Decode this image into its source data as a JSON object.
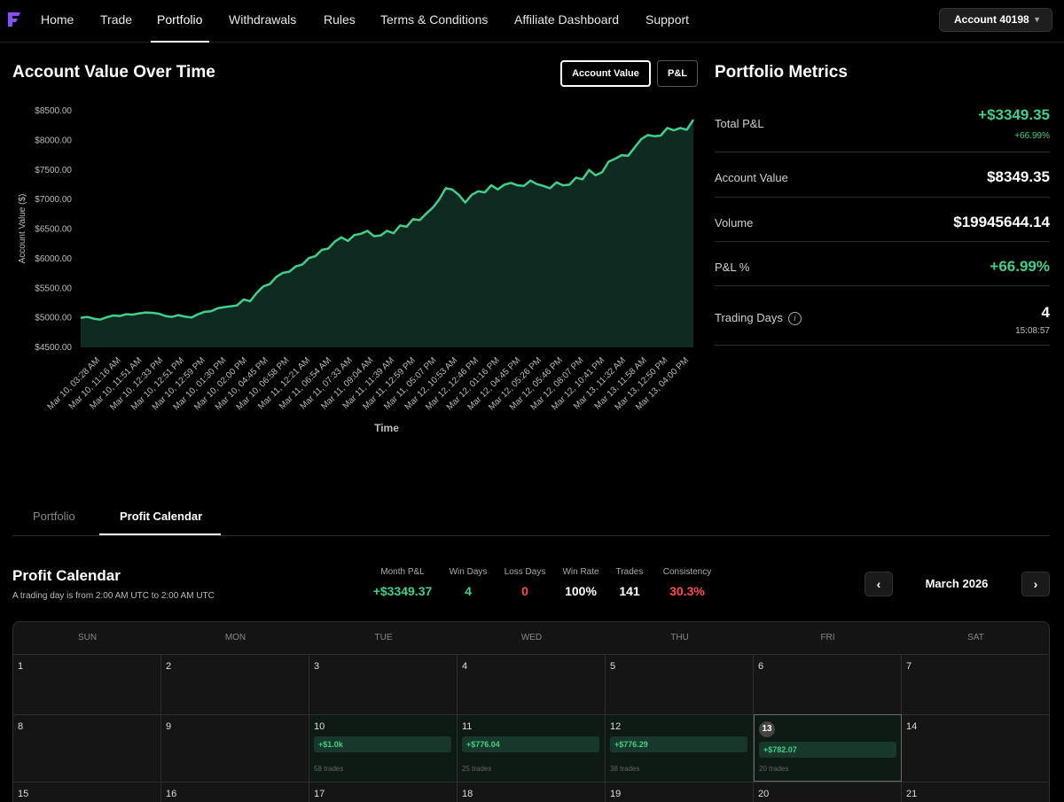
{
  "nav": {
    "items": [
      "Home",
      "Trade",
      "Portfolio",
      "Withdrawals",
      "Rules",
      "Terms & Conditions",
      "Affiliate Dashboard",
      "Support"
    ],
    "active": "Portfolio",
    "account_label": "Account 40198"
  },
  "chart_section": {
    "title": "Account Value Over Time",
    "toggle_account_value": "Account Value",
    "toggle_pnl": "P&L"
  },
  "chart_data": {
    "type": "area",
    "title": "Account Value Over Time",
    "xlabel": "Time",
    "ylabel": "Account Value ($)",
    "ylim": [
      4500,
      8500
    ],
    "y_ticks": [
      "$8500.00",
      "$8000.00",
      "$7500.00",
      "$7000.00",
      "$6500.00",
      "$6000.00",
      "$5500.00",
      "$5000.00",
      "$4500.00"
    ],
    "y_tick_values": [
      8500,
      8000,
      7500,
      7000,
      6500,
      6000,
      5500,
      5000,
      4500
    ],
    "x_ticks": [
      "Mar 10, 03:28 AM",
      "Mar 10, 11:16 AM",
      "Mar 10, 11:51 AM",
      "Mar 10, 12:33 PM",
      "Mar 10, 12:51 PM",
      "Mar 10, 12:59 PM",
      "Mar 10, 01:30 PM",
      "Mar 10, 02:00 PM",
      "Mar 10, 04:45 PM",
      "Mar 10, 06:58 PM",
      "Mar 11, 12:21 AM",
      "Mar 11, 06:54 AM",
      "Mar 11, 07:33 AM",
      "Mar 11, 09:04 AM",
      "Mar 11, 11:39 AM",
      "Mar 11, 12:59 PM",
      "Mar 11, 05:07 PM",
      "Mar 12, 10:53 AM",
      "Mar 12, 12:46 PM",
      "Mar 12, 01:16 PM",
      "Mar 12, 04:45 PM",
      "Mar 12, 05:26 PM",
      "Mar 12, 05:46 PM",
      "Mar 12, 08:07 PM",
      "Mar 12, 10:41 PM",
      "Mar 13, 11:32 AM",
      "Mar 13, 11:58 AM",
      "Mar 13, 12:50 PM",
      "Mar 13, 04:00 PM"
    ],
    "series": [
      {
        "name": "Account Value",
        "values": [
          5000,
          5015,
          4985,
          4970,
          5010,
          5040,
          5030,
          5060,
          5055,
          5075,
          5090,
          5085,
          5070,
          5030,
          5015,
          5045,
          5020,
          5005,
          5060,
          5100,
          5110,
          5160,
          5180,
          5195,
          5210,
          5310,
          5280,
          5420,
          5530,
          5570,
          5690,
          5760,
          5780,
          5870,
          5900,
          6010,
          6040,
          6150,
          6170,
          6290,
          6360,
          6300,
          6400,
          6420,
          6470,
          6380,
          6390,
          6470,
          6430,
          6560,
          6540,
          6670,
          6650,
          6760,
          6860,
          7000,
          7190,
          7170,
          7080,
          6950,
          7080,
          7140,
          7120,
          7240,
          7170,
          7250,
          7280,
          7240,
          7230,
          7320,
          7260,
          7230,
          7190,
          7290,
          7240,
          7250,
          7370,
          7340,
          7500,
          7410,
          7460,
          7640,
          7690,
          7750,
          7740,
          7880,
          8020,
          8090,
          8070,
          8080,
          8210,
          8170,
          8210,
          8180,
          8349.35
        ]
      }
    ]
  },
  "metrics": {
    "title": "Portfolio Metrics",
    "total_pnl_label": "Total P&L",
    "total_pnl_value": "+$3349.35",
    "total_pnl_pct": "+66.99%",
    "account_value_label": "Account Value",
    "account_value": "$8349.35",
    "volume_label": "Volume",
    "volume": "$19945644.14",
    "pnl_pct_label": "P&L %",
    "pnl_pct": "+66.99%",
    "trading_days_label": "Trading Days",
    "trading_days": "4",
    "trading_days_time": "15:08:57",
    "info_icon_glyph": "i"
  },
  "tabs": {
    "portfolio": "Portfolio",
    "profit_calendar": "Profit Calendar"
  },
  "calendar": {
    "title": "Profit Calendar",
    "subtitle": "A trading day is from 2:00 AM UTC to 2:00 AM UTC",
    "stats": [
      {
        "label": "Month P&L",
        "value": "+$3349.37"
      },
      {
        "label": "Win Days",
        "value": "4"
      },
      {
        "label": "Loss Days",
        "value": "0"
      },
      {
        "label": "Win Rate",
        "value": "100%"
      },
      {
        "label": "Trades",
        "value": "141"
      },
      {
        "label": "Consistency",
        "value": "30.3%"
      }
    ],
    "month": "March 2026",
    "prev_glyph": "‹",
    "next_glyph": "›",
    "days_of_week": [
      "SUN",
      "MON",
      "TUE",
      "WED",
      "THU",
      "FRI",
      "SAT"
    ],
    "week1": [
      "1",
      "2",
      "3",
      "4",
      "5",
      "6",
      "7"
    ],
    "week2": [
      "8",
      "9",
      "10",
      "11",
      "12",
      "13",
      "14"
    ],
    "week3": [
      "15",
      "16",
      "17",
      "18",
      "19",
      "20",
      "21"
    ],
    "trades": {
      "d10": {
        "pnl": "+$1.0k",
        "trades": "58 trades"
      },
      "d11": {
        "pnl": "+$776.04",
        "trades": "25 trades"
      },
      "d12": {
        "pnl": "+$776.29",
        "trades": "38 trades"
      },
      "d13": {
        "pnl": "+$782.07",
        "trades": "20 trades"
      }
    }
  },
  "colors": {
    "green": "#3fd08a",
    "red": "#ff4d4d",
    "area_fill": "#0f2a20"
  }
}
